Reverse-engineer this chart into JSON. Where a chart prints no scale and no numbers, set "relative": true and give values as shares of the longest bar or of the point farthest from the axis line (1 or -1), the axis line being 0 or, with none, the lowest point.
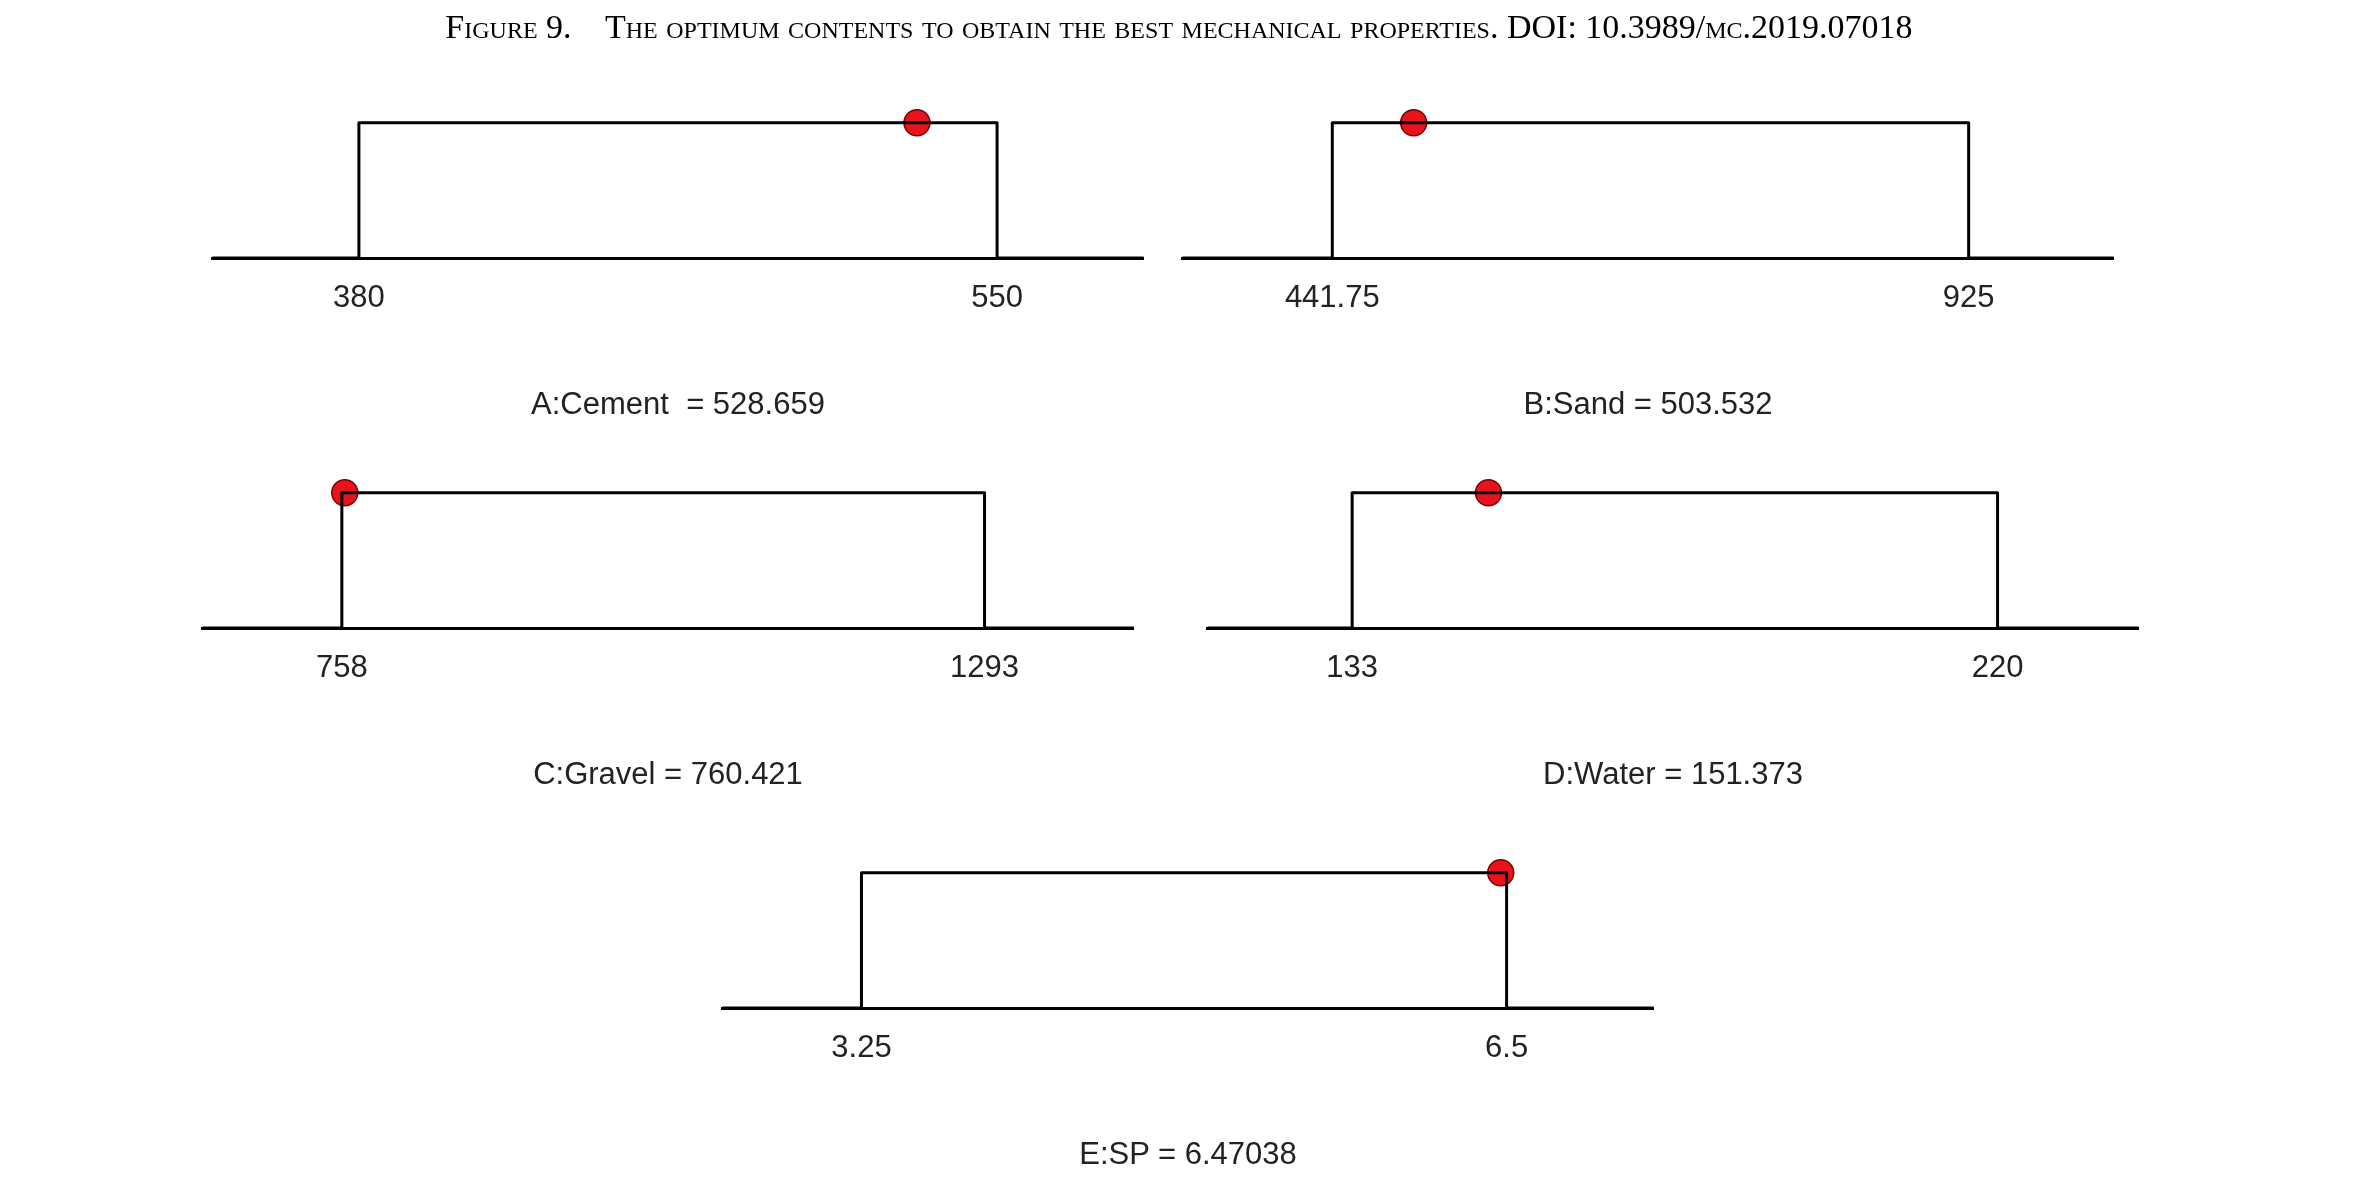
{
  "chart_data": [
    {
      "type": "line",
      "title": "Figure 9.    The optimum contents to obtain the best mechanical properties. DOI: 10.3989/mc.2019.07018",
      "xlabel": "A:Cement  = 528.659",
      "relative": true,
      "xlim": [
        341,
        589
      ],
      "xticks": [
        380,
        550
      ],
      "series": [
        {
          "color": "#000000",
          "marker": "none",
          "x": [
            341,
            380,
            380,
            550,
            550,
            589
          ],
          "values": [
            0,
            0,
            1,
            1,
            0,
            0
          ]
        },
        {
          "type": "scatter",
          "color": "#e8141b",
          "marker": "circle",
          "x": [
            528.659
          ],
          "values": [
            1
          ]
        }
      ]
    },
    {
      "type": "line",
      "xlabel": "B:Sand = 503.532",
      "relative": true,
      "xlim": [
        328,
        1035
      ],
      "xticks": [
        441.75,
        925
      ],
      "series": [
        {
          "color": "#000000",
          "marker": "none",
          "x": [
            328,
            441.75,
            441.75,
            925,
            925,
            1035
          ],
          "values": [
            0,
            0,
            1,
            1,
            0,
            0
          ]
        },
        {
          "type": "scatter",
          "color": "#e8141b",
          "marker": "circle",
          "x": [
            503.532
          ],
          "values": [
            1
          ]
        }
      ]
    },
    {
      "type": "line",
      "xlabel": "C:Gravel = 760.421",
      "relative": true,
      "xlim": [
        642,
        1417
      ],
      "xticks": [
        758,
        1293
      ],
      "series": [
        {
          "color": "#000000",
          "marker": "none",
          "x": [
            642,
            758,
            758,
            1293,
            1293,
            1417
          ],
          "values": [
            0,
            0,
            1,
            1,
            0,
            0
          ]
        },
        {
          "type": "scatter",
          "color": "#e8141b",
          "marker": "circle",
          "x": [
            760.421
          ],
          "values": [
            1
          ]
        }
      ]
    },
    {
      "type": "line",
      "xlabel": "D:Water = 151.373",
      "relative": true,
      "xlim": [
        113.5,
        239
      ],
      "xticks": [
        133,
        220
      ],
      "series": [
        {
          "color": "#000000",
          "marker": "none",
          "x": [
            113.5,
            133,
            133,
            220,
            220,
            239
          ],
          "values": [
            0,
            0,
            1,
            1,
            0,
            0
          ]
        },
        {
          "type": "scatter",
          "color": "#e8141b",
          "marker": "circle",
          "x": [
            151.373
          ],
          "values": [
            1
          ]
        }
      ]
    },
    {
      "type": "line",
      "xlabel": "E:SP = 6.47038",
      "relative": true,
      "xlim": [
        2.55,
        7.24
      ],
      "xticks": [
        3.25,
        6.5
      ],
      "series": [
        {
          "color": "#000000",
          "marker": "none",
          "x": [
            2.55,
            3.25,
            3.25,
            6.5,
            6.5,
            7.24
          ],
          "values": [
            0,
            0,
            1,
            1,
            0,
            0
          ]
        },
        {
          "type": "scatter",
          "color": "#e8141b",
          "marker": "circle",
          "x": [
            6.47038
          ],
          "values": [
            1
          ]
        }
      ]
    }
  ]
}
